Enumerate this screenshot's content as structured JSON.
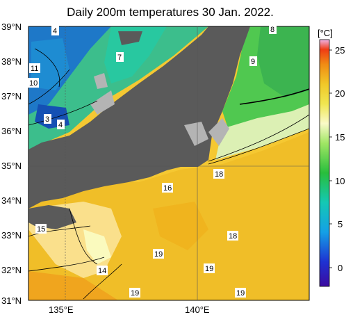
{
  "title": "Daily 200m temperatures 30 Jan. 2022.",
  "units_label": "[°C]",
  "lat_labels": [
    "39°N",
    "38°N",
    "37°N",
    "36°N",
    "35°N",
    "34°N",
    "33°N",
    "32°N",
    "31°N"
  ],
  "lon_labels": [
    "135°E",
    "140°E"
  ],
  "colorbar_ticks": [
    "25",
    "20",
    "15",
    "10",
    "5",
    "0"
  ],
  "contour_labels": [
    "4",
    "7",
    "11",
    "10",
    "3",
    "4",
    "8",
    "9",
    "18",
    "16",
    "15",
    "18",
    "19",
    "14",
    "19",
    "19",
    "19"
  ],
  "colors": {
    "land": "#5a5a5a",
    "shallow": "#b8b8b8",
    "cold": "#1e64c8",
    "cool": "#1eb4b4",
    "mid": "#50c850",
    "warm": "#f0d228",
    "hot": "#f0aa1e"
  }
}
